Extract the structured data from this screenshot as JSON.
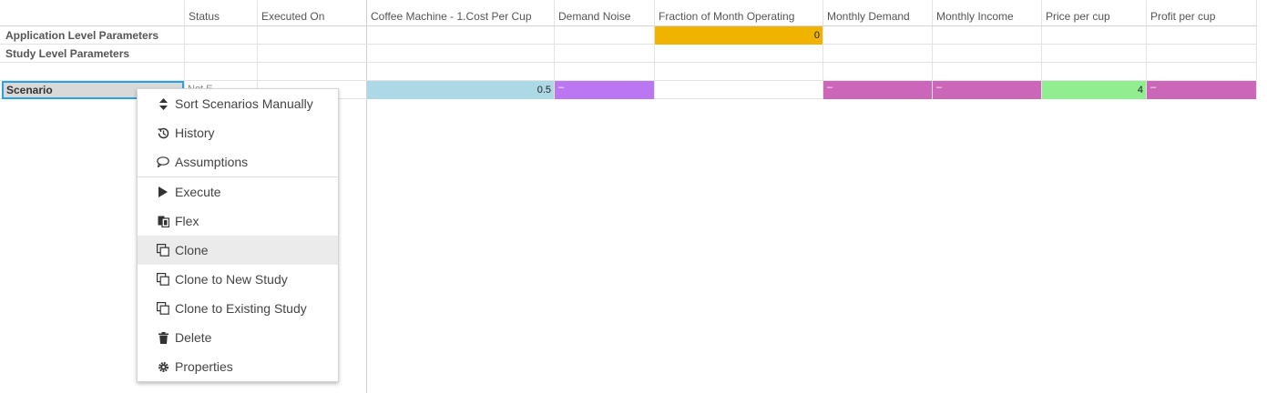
{
  "headers": {
    "status": "Status",
    "executed_on": "Executed On",
    "cost_per_cup": "Coffee Machine - 1.Cost Per Cup",
    "demand_noise": "Demand Noise",
    "fraction_month": "Fraction of Month Operating",
    "monthly_demand": "Monthly Demand",
    "monthly_income": "Monthly Income",
    "price_per_cup": "Price per cup",
    "profit_per_cup": "Profit per cup"
  },
  "rows": {
    "application": "Application Level Parameters",
    "study": "Study Level Parameters",
    "scenario": "Scenario"
  },
  "values": {
    "application_fraction_month": "0",
    "scenario_status_peek": "Not E",
    "scenario_cost_per_cup": "0.5",
    "scenario_demand_noise": "–",
    "scenario_monthly_demand": "–",
    "scenario_monthly_income": "–",
    "scenario_price_per_cup": "4",
    "scenario_profit_per_cup": "–"
  },
  "colors": {
    "orange": "#f0b400",
    "light_blue": "#add8e6",
    "purple": "#bb77f2",
    "magenta": "#cc66b8",
    "light_green": "#90ee90",
    "selection_border": "#29a3e0"
  },
  "context_menu": {
    "items": [
      {
        "label": "Sort Scenarios Manually",
        "icon": "sort-icon"
      },
      {
        "label": "History",
        "icon": "history-icon"
      },
      {
        "label": "Assumptions",
        "icon": "comment-icon"
      },
      {
        "label": "Execute",
        "icon": "play-icon"
      },
      {
        "label": "Flex",
        "icon": "flex-icon"
      },
      {
        "label": "Clone",
        "icon": "clone-icon",
        "highlighted": true
      },
      {
        "label": "Clone to New Study",
        "icon": "clone-icon"
      },
      {
        "label": "Clone to Existing Study",
        "icon": "clone-icon"
      },
      {
        "label": "Delete",
        "icon": "trash-icon"
      },
      {
        "label": "Properties",
        "icon": "gear-icon"
      }
    ]
  }
}
